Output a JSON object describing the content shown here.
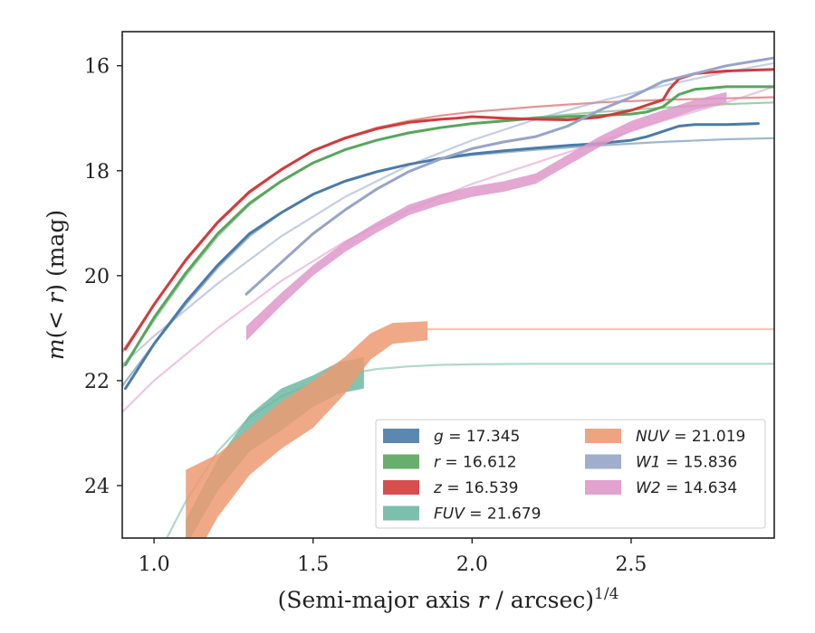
{
  "chart_data": {
    "type": "line",
    "xlabel": "(Semi-major axis r / arcsec)^1/4",
    "ylabel": "m(< r) (mag)",
    "xlim": [
      0.9,
      2.95
    ],
    "ylim": [
      25.0,
      15.35
    ],
    "y_inverted": true,
    "x_ticks": [
      1.0,
      1.5,
      2.0,
      2.5
    ],
    "x_tick_labels": [
      "1.0",
      "1.5",
      "2.0",
      "2.5"
    ],
    "y_ticks": [
      16,
      18,
      20,
      22,
      24
    ],
    "y_tick_labels": [
      "16",
      "18",
      "20",
      "22",
      "24"
    ],
    "grid": false,
    "legend_position": "lower-right",
    "series": [
      {
        "name": "g = 17.345",
        "band": "g",
        "value": "17.345",
        "color": "#4a7ba6",
        "kind": "band_with_model",
        "x": [
          0.91,
          1.0,
          1.1,
          1.2,
          1.3,
          1.4,
          1.5,
          1.6,
          1.7,
          1.8,
          1.9,
          2.0,
          2.1,
          2.2,
          2.3,
          2.4,
          2.5,
          2.55,
          2.6,
          2.65,
          2.7,
          2.8,
          2.9
        ],
        "y": [
          22.15,
          21.3,
          20.5,
          19.8,
          19.2,
          18.8,
          18.45,
          18.2,
          18.02,
          17.88,
          17.77,
          17.68,
          17.62,
          17.57,
          17.52,
          17.48,
          17.42,
          17.35,
          17.25,
          17.15,
          17.12,
          17.12,
          17.1
        ],
        "model_x": [
          0.9,
          1.0,
          1.1,
          1.2,
          1.3,
          1.4,
          1.5,
          1.6,
          1.7,
          1.8,
          1.9,
          2.0,
          2.2,
          2.4,
          2.6,
          2.8,
          2.95
        ],
        "model_y": [
          22.1,
          21.3,
          20.55,
          19.85,
          19.25,
          18.8,
          18.45,
          18.2,
          18.02,
          17.88,
          17.78,
          17.7,
          17.6,
          17.52,
          17.45,
          17.4,
          17.38
        ]
      },
      {
        "name": "r = 16.612",
        "band": "r",
        "value": "16.612",
        "color": "#58a55c",
        "kind": "band_with_model",
        "x": [
          0.91,
          1.0,
          1.1,
          1.2,
          1.3,
          1.4,
          1.5,
          1.6,
          1.7,
          1.8,
          1.9,
          2.0,
          2.1,
          2.2,
          2.3,
          2.4,
          2.5,
          2.55,
          2.6,
          2.65,
          2.7,
          2.8,
          2.95
        ],
        "y": [
          21.7,
          20.8,
          19.95,
          19.2,
          18.62,
          18.2,
          17.85,
          17.6,
          17.42,
          17.28,
          17.18,
          17.1,
          17.05,
          17.0,
          16.97,
          16.95,
          16.92,
          16.88,
          16.78,
          16.55,
          16.45,
          16.4,
          16.4
        ],
        "model_x": [
          0.9,
          1.0,
          1.1,
          1.2,
          1.3,
          1.4,
          1.5,
          1.6,
          1.7,
          1.8,
          1.9,
          2.0,
          2.2,
          2.4,
          2.6,
          2.8,
          2.95
        ],
        "model_y": [
          21.75,
          20.85,
          20.0,
          19.25,
          18.65,
          18.2,
          17.85,
          17.6,
          17.42,
          17.28,
          17.18,
          17.1,
          16.98,
          16.88,
          16.8,
          16.73,
          16.7
        ]
      },
      {
        "name": "z = 16.539",
        "band": "z",
        "value": "16.539",
        "color": "#d13b3b",
        "kind": "band_with_model",
        "x": [
          0.91,
          1.0,
          1.1,
          1.2,
          1.3,
          1.4,
          1.5,
          1.6,
          1.7,
          1.8,
          1.9,
          1.95,
          2.0,
          2.1,
          2.2,
          2.3,
          2.4,
          2.5,
          2.6,
          2.62,
          2.65,
          2.7,
          2.8,
          2.95
        ],
        "y": [
          21.4,
          20.55,
          19.7,
          18.98,
          18.4,
          17.98,
          17.62,
          17.38,
          17.2,
          17.08,
          17.02,
          17.0,
          16.97,
          17.0,
          17.02,
          17.03,
          16.98,
          16.85,
          16.65,
          16.45,
          16.25,
          16.15,
          16.1,
          16.07
        ],
        "model_x": [
          0.9,
          1.0,
          1.1,
          1.2,
          1.3,
          1.4,
          1.5,
          1.6,
          1.7,
          1.8,
          1.9,
          2.0,
          2.2,
          2.4,
          2.6,
          2.8,
          2.95
        ],
        "model_y": [
          21.45,
          20.55,
          19.72,
          19.0,
          18.42,
          17.98,
          17.62,
          17.37,
          17.18,
          17.05,
          16.95,
          16.88,
          16.78,
          16.7,
          16.65,
          16.62,
          16.6
        ]
      },
      {
        "name": "FUV = 21.679",
        "band": "FUV",
        "value": "21.679",
        "color": "#6db8a3",
        "kind": "band_with_model",
        "x": [
          1.1,
          1.2,
          1.3,
          1.4,
          1.5,
          1.58,
          1.66
        ],
        "y": [
          24.9,
          23.8,
          23.0,
          22.55,
          22.2,
          21.95,
          21.85
        ],
        "half_width": [
          0.25,
          0.3,
          0.35,
          0.4,
          0.3,
          0.3,
          0.3
        ],
        "model_x": [
          1.04,
          1.1,
          1.2,
          1.3,
          1.4,
          1.5,
          1.6,
          1.7,
          1.8,
          1.9,
          2.0,
          2.2,
          2.4,
          2.6,
          2.8,
          2.95
        ],
        "model_y": [
          25.0,
          24.3,
          23.35,
          22.7,
          22.3,
          22.05,
          21.88,
          21.78,
          21.73,
          21.7,
          21.69,
          21.68,
          21.68,
          21.68,
          21.68,
          21.68
        ]
      },
      {
        "name": "NUV = 21.019",
        "band": "NUV",
        "value": "21.019",
        "color": "#ec9a72",
        "kind": "band_with_model",
        "x": [
          1.1,
          1.2,
          1.3,
          1.4,
          1.5,
          1.6,
          1.68,
          1.75,
          1.86
        ],
        "y": [
          24.7,
          24.0,
          23.35,
          22.85,
          22.45,
          21.9,
          21.35,
          21.1,
          21.05
        ],
        "half_width": [
          1.0,
          0.6,
          0.45,
          0.45,
          0.45,
          0.35,
          0.25,
          0.2,
          0.18
        ],
        "model_x": [
          1.86,
          2.0,
          2.2,
          2.4,
          2.6,
          2.8,
          2.95
        ],
        "model_y": [
          21.02,
          21.02,
          21.02,
          21.02,
          21.02,
          21.02,
          21.02
        ]
      },
      {
        "name": "W1 = 15.836",
        "band": "W1",
        "value": "15.836",
        "color": "#96a4c8",
        "kind": "band_with_model",
        "x": [
          1.29,
          1.4,
          1.5,
          1.6,
          1.7,
          1.8,
          1.9,
          2.0,
          2.1,
          2.2,
          2.3,
          2.4,
          2.5,
          2.6,
          2.7,
          2.8,
          2.95
        ],
        "y": [
          20.35,
          19.75,
          19.2,
          18.75,
          18.35,
          18.02,
          17.78,
          17.58,
          17.45,
          17.35,
          17.15,
          16.85,
          16.6,
          16.3,
          16.15,
          16.0,
          15.85
        ],
        "model_x": [
          0.9,
          1.0,
          1.2,
          1.4,
          1.6,
          1.8,
          2.0,
          2.2,
          2.4,
          2.6,
          2.8,
          2.95
        ],
        "model_y": [
          21.7,
          21.15,
          20.15,
          19.25,
          18.5,
          17.9,
          17.42,
          17.02,
          16.68,
          16.38,
          16.12,
          15.95
        ]
      },
      {
        "name": "W2 = 14.634",
        "band": "W2",
        "value": "14.634",
        "color": "#de98c9",
        "kind": "band_with_model",
        "x": [
          1.29,
          1.4,
          1.5,
          1.6,
          1.7,
          1.8,
          1.9,
          2.0,
          2.1,
          2.2,
          2.3,
          2.4,
          2.5,
          2.6,
          2.7,
          2.8
        ],
        "y": [
          21.1,
          20.45,
          19.9,
          19.45,
          19.08,
          18.75,
          18.55,
          18.4,
          18.3,
          18.15,
          17.8,
          17.45,
          17.15,
          16.95,
          16.75,
          16.6
        ],
        "half_width": [
          0.14,
          0.12,
          0.1,
          0.1,
          0.1,
          0.1,
          0.1,
          0.1,
          0.1,
          0.1,
          0.1,
          0.1,
          0.1,
          0.1,
          0.1,
          0.1
        ],
        "model_x": [
          0.9,
          1.0,
          1.2,
          1.4,
          1.6,
          1.8,
          2.0,
          2.2,
          2.4,
          2.6,
          2.8,
          2.95
        ],
        "model_y": [
          22.6,
          22.0,
          21.0,
          20.1,
          19.35,
          18.75,
          18.25,
          17.85,
          17.45,
          17.05,
          16.7,
          16.4
        ]
      }
    ]
  }
}
